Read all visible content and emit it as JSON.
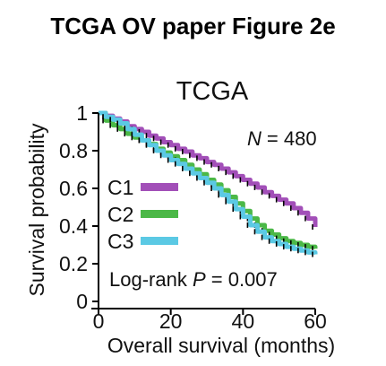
{
  "heading": "TCGA OV paper Figure 2e",
  "chart_data": {
    "type": "line",
    "title": "TCGA",
    "xlabel": "Overall survival (months)",
    "ylabel": "Survival probability",
    "xlim": [
      0,
      60
    ],
    "ylim": [
      0,
      1
    ],
    "xticks": [
      "0",
      "20",
      "40",
      "60"
    ],
    "yticks": [
      "0",
      "0.2",
      "0.4",
      "0.6",
      "0.8",
      "1"
    ],
    "grid": false,
    "legend_position": "left-middle",
    "annotations": {
      "n_label": "N",
      "n_value": "= 480",
      "pvalue_prefix": "Log-rank ",
      "pvalue_label": "P",
      "pvalue_value": " = 0.007"
    },
    "series": [
      {
        "name": "C1",
        "color": "#a24fb8",
        "x": [
          0,
          2,
          4,
          6,
          8,
          10,
          12,
          14,
          16,
          18,
          20,
          22,
          24,
          26,
          28,
          30,
          32,
          34,
          36,
          38,
          40,
          42,
          44,
          46,
          48,
          50,
          52,
          54,
          56,
          58,
          60
        ],
        "y": [
          1.0,
          0.985,
          0.97,
          0.955,
          0.93,
          0.915,
          0.9,
          0.88,
          0.865,
          0.845,
          0.83,
          0.81,
          0.795,
          0.775,
          0.76,
          0.74,
          0.725,
          0.705,
          0.685,
          0.665,
          0.645,
          0.625,
          0.605,
          0.58,
          0.56,
          0.54,
          0.52,
          0.495,
          0.47,
          0.44,
          0.395
        ]
      },
      {
        "name": "C2",
        "color": "#4bb847",
        "x": [
          0,
          2,
          4,
          6,
          8,
          10,
          12,
          14,
          16,
          18,
          20,
          22,
          24,
          26,
          28,
          30,
          32,
          34,
          36,
          38,
          40,
          42,
          44,
          46,
          48,
          50,
          52,
          54,
          56,
          58,
          60
        ],
        "y": [
          1.0,
          0.96,
          0.935,
          0.915,
          0.89,
          0.87,
          0.855,
          0.835,
          0.81,
          0.79,
          0.77,
          0.75,
          0.725,
          0.7,
          0.675,
          0.645,
          0.62,
          0.59,
          0.555,
          0.52,
          0.48,
          0.44,
          0.405,
          0.375,
          0.355,
          0.335,
          0.32,
          0.31,
          0.3,
          0.29,
          0.28
        ]
      },
      {
        "name": "C3",
        "color": "#5bc9e4",
        "x": [
          0,
          2,
          4,
          6,
          8,
          10,
          12,
          14,
          16,
          18,
          20,
          22,
          24,
          26,
          28,
          30,
          32,
          34,
          36,
          38,
          40,
          42,
          44,
          46,
          48,
          50,
          52,
          54,
          56,
          58,
          60
        ],
        "y": [
          1.0,
          0.98,
          0.965,
          0.945,
          0.915,
          0.885,
          0.855,
          0.83,
          0.8,
          0.775,
          0.75,
          0.73,
          0.705,
          0.68,
          0.655,
          0.63,
          0.6,
          0.565,
          0.53,
          0.49,
          0.45,
          0.405,
          0.37,
          0.34,
          0.32,
          0.305,
          0.29,
          0.28,
          0.27,
          0.26,
          0.25
        ]
      }
    ]
  }
}
